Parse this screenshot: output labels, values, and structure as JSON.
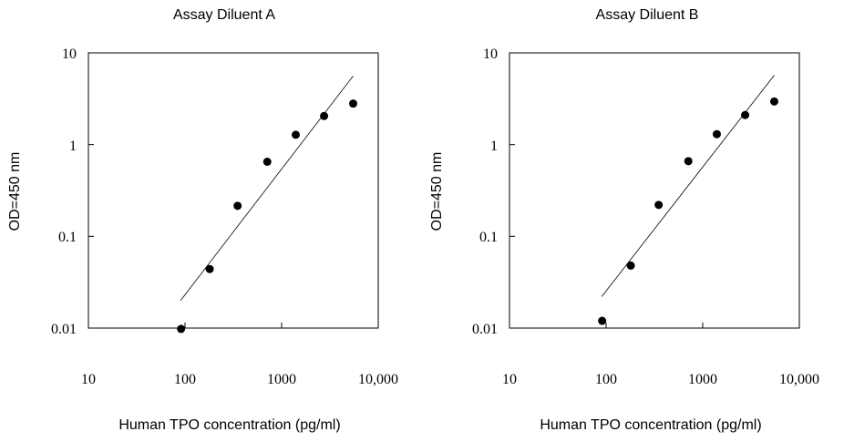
{
  "chart_data": [
    {
      "type": "scatter",
      "title": "Assay Diluent A",
      "xlabel": "Human TPO concentration (pg/ml)",
      "ylabel": "OD=450 nm",
      "xscale": "log",
      "yscale": "log",
      "xlim": [
        10,
        10000
      ],
      "ylim": [
        0.01,
        10
      ],
      "xticks": [
        10,
        100,
        1000,
        10000
      ],
      "xtick_labels": [
        "10",
        "100",
        "1000",
        "10,000"
      ],
      "yticks": [
        0.01,
        0.1,
        1,
        10
      ],
      "ytick_labels": [
        "0.01",
        "0.1",
        "1",
        "10"
      ],
      "grid": false,
      "series": [
        {
          "points": [
            {
              "x": 91,
              "y": 0.0098
            },
            {
              "x": 180,
              "y": 0.044
            },
            {
              "x": 350,
              "y": 0.215
            },
            {
              "x": 710,
              "y": 0.65
            },
            {
              "x": 1400,
              "y": 1.28
            },
            {
              "x": 2750,
              "y": 2.05
            },
            {
              "x": 5500,
              "y": 2.8
            }
          ]
        }
      ],
      "fit_line": [
        {
          "x": 90,
          "y": 0.02
        },
        {
          "x": 5500,
          "y": 5.6
        }
      ]
    },
    {
      "type": "scatter",
      "title": "Assay Diluent B",
      "xlabel": "Human TPO concentration (pg/ml)",
      "ylabel": "OD=450 nm",
      "xscale": "log",
      "yscale": "log",
      "xlim": [
        10,
        10000
      ],
      "ylim": [
        0.01,
        10
      ],
      "xticks": [
        10,
        100,
        1000,
        10000
      ],
      "xtick_labels": [
        "10",
        "100",
        "1000",
        "10,000"
      ],
      "yticks": [
        0.01,
        0.1,
        1,
        10
      ],
      "ytick_labels": [
        "0.01",
        "0.1",
        "1",
        "10"
      ],
      "grid": false,
      "series": [
        {
          "points": [
            {
              "x": 91,
              "y": 0.012
            },
            {
              "x": 180,
              "y": 0.048
            },
            {
              "x": 350,
              "y": 0.22
            },
            {
              "x": 710,
              "y": 0.66
            },
            {
              "x": 1400,
              "y": 1.3
            },
            {
              "x": 2750,
              "y": 2.1
            },
            {
              "x": 5500,
              "y": 2.95
            }
          ]
        }
      ],
      "fit_line": [
        {
          "x": 90,
          "y": 0.022
        },
        {
          "x": 5500,
          "y": 5.7
        }
      ]
    }
  ]
}
